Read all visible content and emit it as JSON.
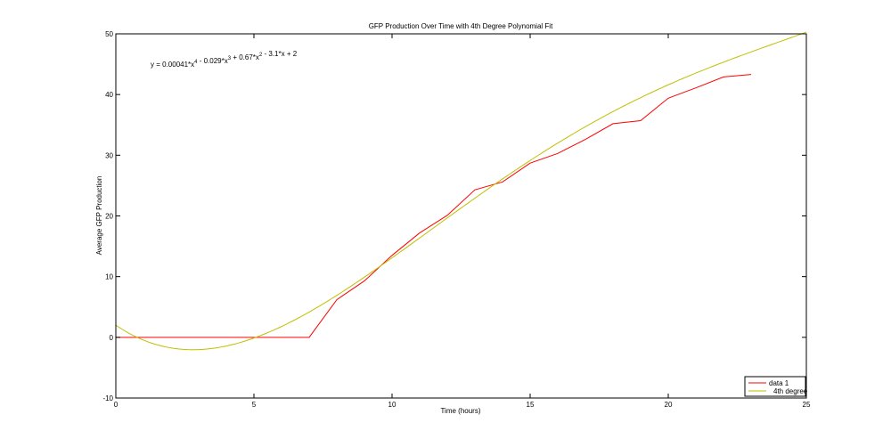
{
  "chart_data": {
    "type": "line",
    "title": "GFP Production Over Time with 4th Degree Polynomial Fit",
    "xlabel": "Time (hours)",
    "ylabel": "Average GFP Production",
    "xlim": [
      0,
      25
    ],
    "ylim": [
      -10,
      50
    ],
    "xticks": [
      0,
      5,
      10,
      15,
      20,
      25
    ],
    "yticks": [
      -10,
      0,
      10,
      20,
      30,
      40,
      50
    ],
    "grid": false,
    "legend_position": "bottom-right",
    "annotation": {
      "parts": [
        {
          "t": "y = 0.00041*x",
          "sup": "4"
        },
        {
          "t": " - 0.029*x",
          "sup": "3"
        },
        {
          "t": " + 0.67*x",
          "sup": "2"
        },
        {
          "t": " - 3.1*x + 2",
          "sup": ""
        }
      ]
    },
    "series": [
      {
        "name": "data 1",
        "color": "#ff0000",
        "x": [
          0,
          1,
          2,
          3,
          4,
          5,
          6,
          7,
          8,
          9,
          10,
          11,
          12,
          13,
          14,
          15,
          16,
          17,
          18,
          19,
          20,
          21,
          22,
          23
        ],
        "y": [
          0,
          0,
          0,
          0,
          0,
          0,
          0,
          0,
          6.2,
          9.3,
          13.5,
          17.2,
          20.1,
          24.3,
          25.6,
          28.7,
          30.3,
          32.6,
          35.2,
          35.7,
          39.4,
          41.1,
          42.9,
          43.3
        ]
      },
      {
        "name": "4th degree",
        "color": "#bfbf00",
        "type": "curve",
        "coefficients": [
          0.00041,
          -0.029,
          0.67,
          -3.1,
          2
        ],
        "x_range": [
          0,
          25
        ]
      }
    ]
  }
}
